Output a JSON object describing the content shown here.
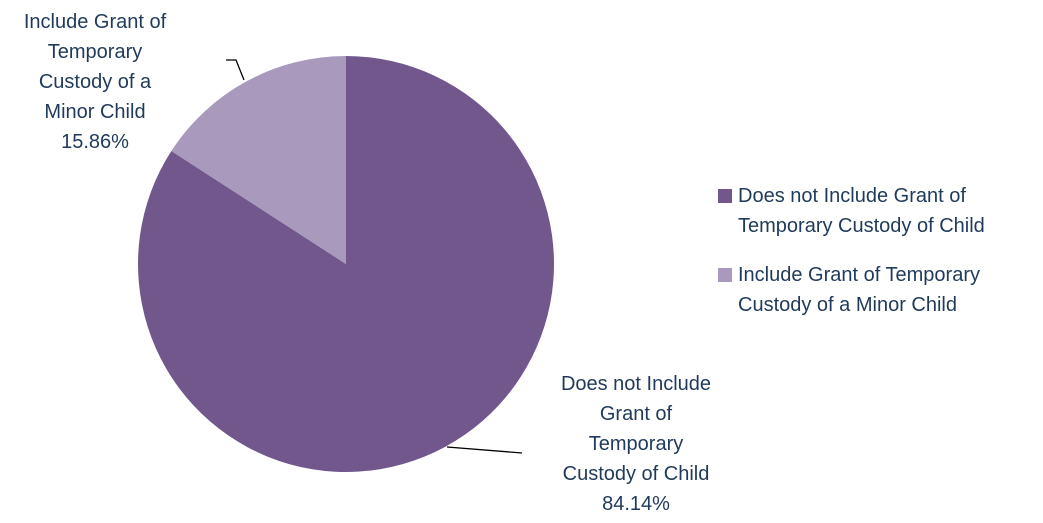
{
  "chart_data": {
    "type": "pie",
    "slices": [
      {
        "name": "Does not Include Grant of Temporary Custody of Child",
        "value": 84.14,
        "color": "#72578d",
        "data_label_lines": [
          "Does not Include",
          "Grant of",
          "Temporary",
          "Custody of Child",
          "84.14%"
        ],
        "legend_lines": [
          "Does not Include Grant of",
          "Temporary Custody of Child"
        ]
      },
      {
        "name": "Include Grant of Temporary Custody of a Minor Child",
        "value": 15.86,
        "color": "#a899bd",
        "data_label_lines": [
          "Include Grant of",
          "Temporary",
          "Custody of a",
          "Minor Child",
          "15.86%"
        ],
        "legend_lines": [
          "Include Grant of Temporary",
          "Custody of a Minor Child"
        ]
      }
    ],
    "legend_position": "right"
  }
}
